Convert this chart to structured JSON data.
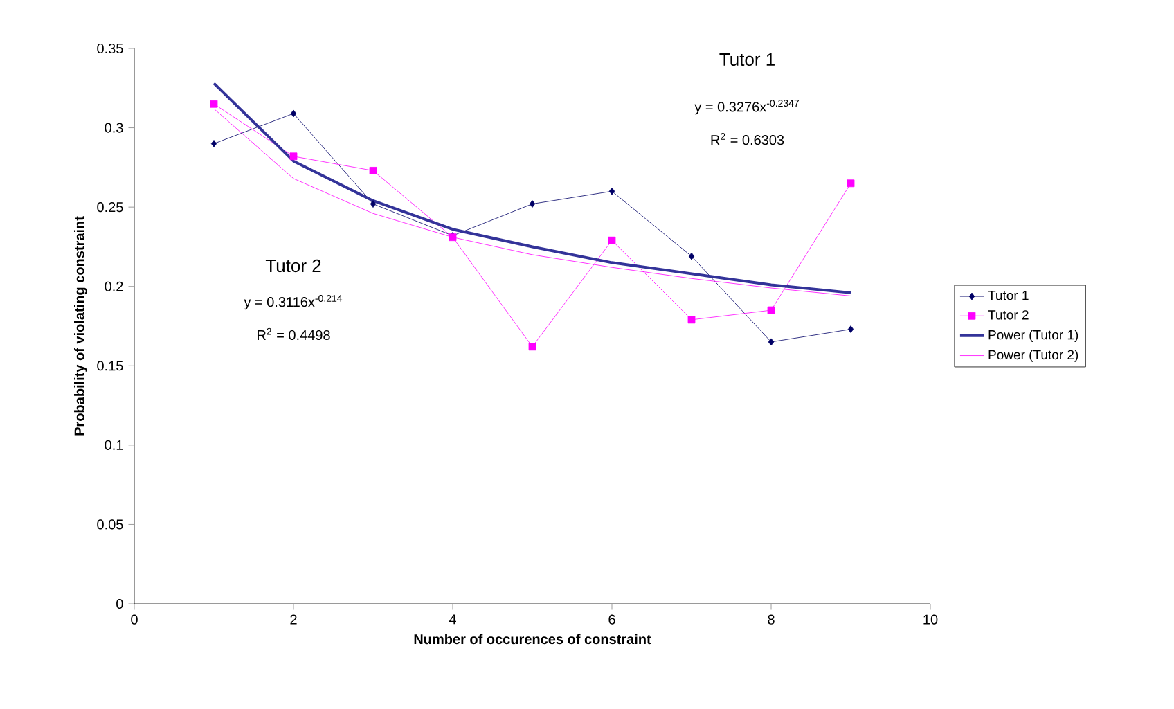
{
  "chart_data": {
    "type": "line",
    "xlabel": "Number of occurences of constraint",
    "ylabel": "Probability of violating constraint",
    "x": [
      1,
      2,
      3,
      4,
      5,
      6,
      7,
      8,
      9
    ],
    "series": [
      {
        "name": "Tutor 1",
        "color": "#000066",
        "marker": "diamond",
        "values": [
          0.29,
          0.309,
          0.252,
          0.232,
          0.252,
          0.26,
          0.219,
          0.165,
          0.173
        ]
      },
      {
        "name": "Tutor 2",
        "color": "#ff00ff",
        "marker": "square",
        "values": [
          0.315,
          0.282,
          0.273,
          0.231,
          0.162,
          0.229,
          0.179,
          0.185,
          0.265
        ]
      },
      {
        "name": "Power (Tutor 1)",
        "color": "#333399",
        "marker": "none",
        "values": [
          0.328,
          0.279,
          0.254,
          0.236,
          0.225,
          0.215,
          0.208,
          0.201,
          0.196
        ]
      },
      {
        "name": "Power (Tutor 2)",
        "color": "#ff00ff",
        "marker": "none",
        "values": [
          0.312,
          0.268,
          0.246,
          0.231,
          0.22,
          0.212,
          0.205,
          0.199,
          0.194
        ]
      }
    ],
    "xlim": [
      0,
      10
    ],
    "xticks": [
      0,
      2,
      4,
      6,
      8,
      10
    ],
    "ylim": [
      0,
      0.35
    ],
    "yticks": [
      0,
      0.05,
      0.1,
      0.15,
      0.2,
      0.25,
      0.3,
      0.35
    ],
    "grid": false,
    "legend": "right",
    "annotations": [
      "Tutor 1",
      "y = 0.3276x$^{-0.2347}$",
      "R$^{2}$ = 0.6303",
      "Tutor 2",
      "y = 0.3116x$^{-0.214}$",
      "R$^{2}$ = 0.4498"
    ]
  }
}
